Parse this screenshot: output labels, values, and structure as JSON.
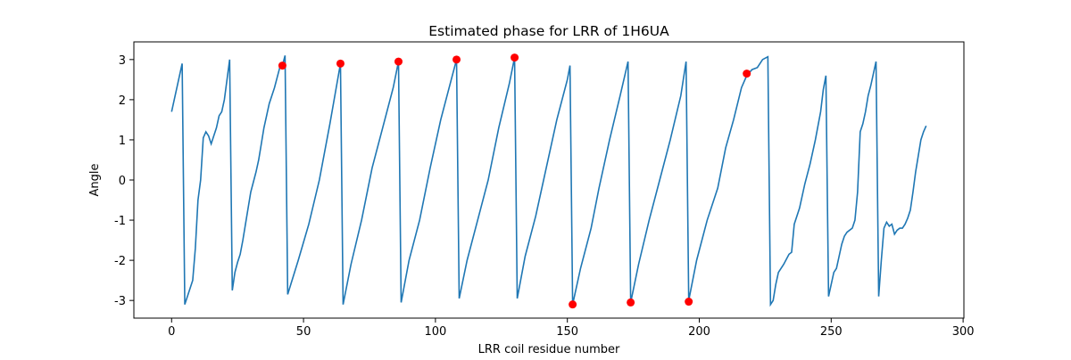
{
  "chart_data": {
    "type": "line",
    "title": "Estimated phase for LRR of 1H6UA",
    "xlabel": "LRR coil residue number",
    "ylabel": "Angle",
    "xlim": [
      -14.3,
      300.3
    ],
    "ylim": [
      -3.44,
      3.44
    ],
    "xticks": [
      0,
      50,
      100,
      150,
      200,
      250,
      300
    ],
    "yticks": [
      -3,
      -2,
      -1,
      0,
      1,
      2,
      3
    ],
    "series": [
      {
        "color": "#1f77b4",
        "style": "line",
        "x": [
          0,
          4,
          5,
          8,
          9,
          10,
          11,
          12,
          13,
          14,
          15,
          16,
          17,
          18,
          19,
          20,
          21,
          22,
          23,
          24,
          25,
          26,
          27,
          28,
          29,
          30,
          31,
          32,
          33,
          34,
          35,
          36,
          37,
          38,
          39,
          40,
          41,
          42,
          43,
          44,
          48,
          52,
          56,
          60,
          64,
          65,
          68,
          72,
          76,
          80,
          84,
          86,
          87,
          90,
          94,
          98,
          102,
          106,
          108,
          109,
          112,
          116,
          120,
          124,
          128,
          130,
          131,
          134,
          138,
          142,
          146,
          150,
          151,
          152,
          155,
          159,
          162,
          166,
          170,
          173,
          174,
          177,
          181,
          185,
          189,
          193,
          195,
          196,
          199,
          203,
          207,
          210,
          213,
          216,
          218,
          220,
          222,
          224,
          226,
          227,
          228,
          229,
          230,
          232,
          234,
          235,
          236,
          238,
          240,
          242,
          244,
          246,
          247,
          248,
          249,
          250,
          251,
          252,
          253,
          254,
          255,
          256,
          258,
          259,
          260,
          261,
          262,
          263,
          264,
          265,
          266,
          267,
          268,
          269,
          270,
          271,
          272,
          273,
          274,
          275,
          276,
          277,
          278,
          279,
          280,
          281,
          282,
          283,
          284,
          285,
          286
        ],
        "values": [
          1.7,
          2.9,
          -3.1,
          -2.5,
          -1.7,
          -0.5,
          0,
          1.05,
          1.2,
          1.1,
          0.9,
          1.1,
          1.3,
          1.6,
          1.7,
          2.0,
          2.5,
          3.0,
          -2.75,
          -2.3,
          -2.05,
          -1.85,
          -1.5,
          -1.1,
          -0.7,
          -0.3,
          -0.05,
          0.2,
          0.5,
          0.9,
          1.3,
          1.6,
          1.9,
          2.1,
          2.3,
          2.55,
          2.8,
          2.85,
          3.1,
          -2.85,
          -2.0,
          -1.1,
          0,
          1.4,
          2.9,
          -3.1,
          -2.1,
          -1.0,
          0.3,
          1.3,
          2.3,
          2.95,
          -3.05,
          -2.0,
          -1.0,
          0.3,
          1.5,
          2.5,
          3.0,
          -2.95,
          -2.0,
          -1.0,
          0,
          1.3,
          2.4,
          3.05,
          -2.95,
          -1.9,
          -0.9,
          0.3,
          1.5,
          2.5,
          2.85,
          -3.1,
          -2.2,
          -1.2,
          -0.2,
          1.0,
          2.1,
          2.95,
          -3.05,
          -2.1,
          -1.0,
          0,
          1.0,
          2.1,
          2.95,
          -3.0,
          -2.0,
          -1.0,
          -0.2,
          0.8,
          1.5,
          2.3,
          2.6,
          2.75,
          2.8,
          3.0,
          3.07,
          -3.1,
          -3.0,
          -2.6,
          -2.3,
          -2.1,
          -1.85,
          -1.8,
          -1.1,
          -0.7,
          -0.1,
          0.4,
          1.0,
          1.7,
          2.25,
          2.6,
          -2.9,
          -2.6,
          -2.3,
          -2.2,
          -1.9,
          -1.6,
          -1.4,
          -1.3,
          -1.2,
          -1.0,
          -0.3,
          1.2,
          1.4,
          1.7,
          2.1,
          2.35,
          2.65,
          2.95,
          -2.9,
          -2.0,
          -1.2,
          -1.05,
          -1.15,
          -1.1,
          -1.35,
          -1.25,
          -1.2,
          -1.2,
          -1.1,
          -0.95,
          -0.75,
          -0.3,
          0.2,
          0.6,
          1.0,
          1.2,
          1.35
        ]
      },
      {
        "color": "#ff0000",
        "style": "markers",
        "x": [
          42,
          64,
          86,
          108,
          130,
          152,
          174,
          196,
          218
        ],
        "values": [
          2.85,
          2.9,
          2.95,
          3.0,
          3.05,
          -3.1,
          -3.05,
          -3.03,
          2.65
        ]
      }
    ]
  }
}
